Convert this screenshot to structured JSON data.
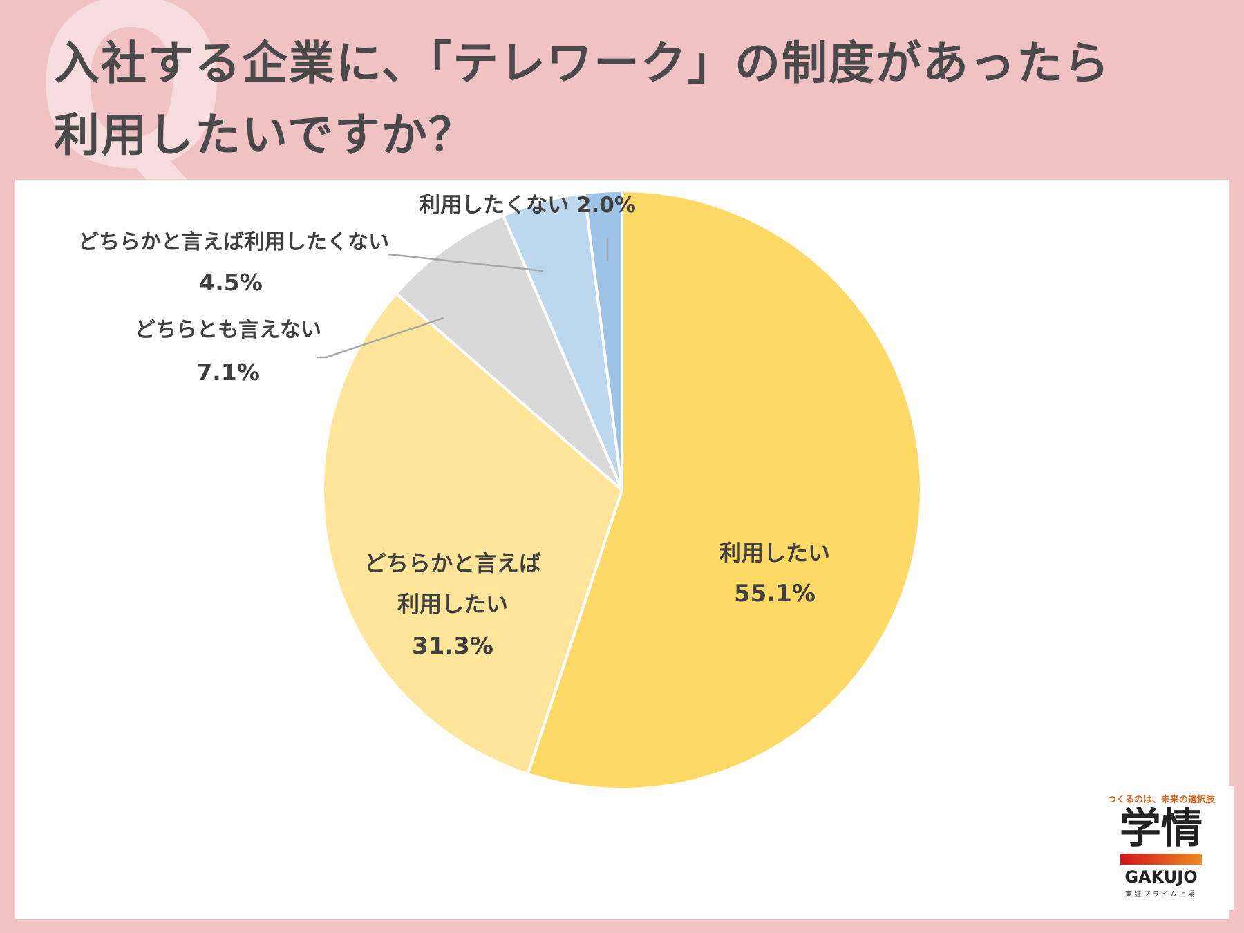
{
  "title_line1": "入社する企業に、「テレワーク」の制度があったら",
  "title_line2": "利用したいですか？",
  "chart_data": {
    "type": "pie",
    "title": "入社する企業に、「テレワーク」の制度があったら利用したいですか？",
    "start_angle_deg": 0,
    "direction": "clockwise",
    "slices": [
      {
        "label": "利用したい",
        "value": 55.1,
        "value_text": "55.1%",
        "color": "#fed966"
      },
      {
        "label": "どちらかと言えば利用したい",
        "value": 31.3,
        "value_text": "31.3%",
        "color": "#ffe599"
      },
      {
        "label": "どちらとも言えない",
        "value": 7.1,
        "value_text": "7.1%",
        "color": "#d9d9d9"
      },
      {
        "label": "どちらかと言えば利用したくない",
        "value": 4.5,
        "value_text": "4.5%",
        "color": "#bdd7ee"
      },
      {
        "label": "利用したくない",
        "value": 2.0,
        "value_text": "2.0%",
        "color": "#9dc3e6"
      }
    ]
  },
  "labels": {
    "s0_l1": "利用したい",
    "s0_l2": "55.1%",
    "s1_l1": "どちらかと言えば",
    "s1_l2": "利用したい",
    "s1_l3": "31.3%",
    "s2_l1": "どちらとも言えない",
    "s2_l2": "7.1%",
    "s3_l1": "どちらかと言えば利用したくない",
    "s3_l2": "4.5%",
    "s4_l1": "利用したくない 2.0%"
  },
  "logo": {
    "tagline": "つくるのは、未来の選択肢",
    "name": "学情",
    "name_en": "GAKUJO",
    "sub": "東証プライム上場"
  }
}
